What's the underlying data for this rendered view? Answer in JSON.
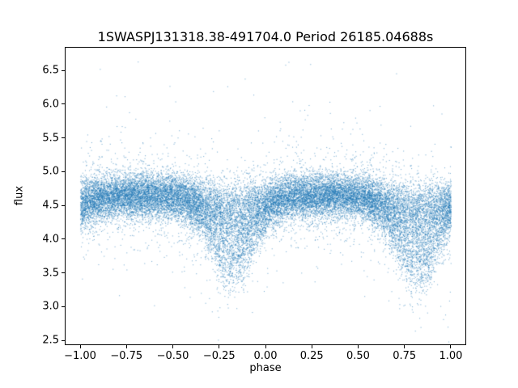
{
  "figure": {
    "background": "#ffffff",
    "text_color": "#000000"
  },
  "chart_data": {
    "type": "scatter",
    "title": "1SWASPJ131318.38-491704.0 Period 26185.04688s",
    "xlabel": "phase",
    "ylabel": "flux",
    "xlim": [
      -1.083,
      1.083
    ],
    "ylim": [
      2.43,
      6.85
    ],
    "grid": false,
    "legend": null,
    "marker_color": "#1f77b4",
    "marker_size_px": 1,
    "xticks": [
      {
        "value": -1.0,
        "label": "−1.00"
      },
      {
        "value": -0.75,
        "label": "−0.75"
      },
      {
        "value": -0.5,
        "label": "−0.50"
      },
      {
        "value": -0.25,
        "label": "−0.25"
      },
      {
        "value": 0.0,
        "label": "0.00"
      },
      {
        "value": 0.25,
        "label": "0.25"
      },
      {
        "value": 0.5,
        "label": "0.50"
      },
      {
        "value": 0.75,
        "label": "0.75"
      },
      {
        "value": 1.0,
        "label": "1.00"
      }
    ],
    "yticks": [
      {
        "value": 2.5,
        "label": "2.5"
      },
      {
        "value": 3.0,
        "label": "3.0"
      },
      {
        "value": 3.5,
        "label": "3.5"
      },
      {
        "value": 4.0,
        "label": "4.0"
      },
      {
        "value": 4.5,
        "label": "4.5"
      },
      {
        "value": 5.0,
        "label": "5.0"
      },
      {
        "value": 5.5,
        "label": "5.5"
      },
      {
        "value": 6.0,
        "label": "6.0"
      },
      {
        "value": 6.5,
        "label": "6.5"
      }
    ],
    "data_summary": {
      "phase_range": [
        -1.0,
        1.0
      ],
      "baseline_flux": 4.65,
      "band_scatter_sigma": 0.16,
      "outlier_flux_range": [
        2.6,
        6.6
      ],
      "eclipse_phase_centers": [
        -0.18,
        0.82
      ],
      "eclipse_min_flux": 3.3
    },
    "model": {
      "seed": 1313,
      "n_points": 26000,
      "baseline": 4.65,
      "noise_sigma": 0.16,
      "tail1_frac": 0.1,
      "tail1_sigma": 0.42,
      "tail2_frac": 0.012,
      "tail2_sigma": 0.85,
      "eclipse_centers": [
        0.82
      ],
      "eclipse_period": 1.0,
      "eclipse_sigma": 0.12,
      "depth_min": 0.05,
      "depth_max": 1.3,
      "depth_skew": 1.6
    }
  }
}
